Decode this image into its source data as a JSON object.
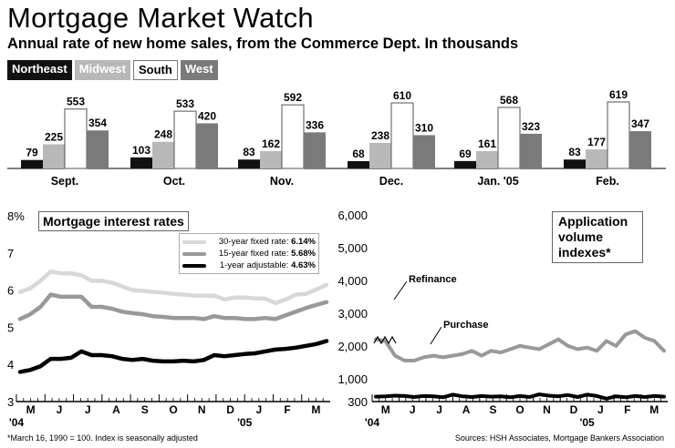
{
  "header": {
    "title": "Mortgage Market Watch",
    "subtitle": "Annual rate of new home sales, from the Commerce Dept. In thousands"
  },
  "colors": {
    "northeast": "#111111",
    "midwest": "#b8b8b8",
    "south": "#ffffff",
    "west": "#7a7a7a"
  },
  "chart_data": [
    {
      "type": "bar",
      "title": "Annual rate of new home sales, from the Commerce Dept. In thousands",
      "categories": [
        "Sept.",
        "Oct.",
        "Nov.",
        "Dec.",
        "Jan. '05",
        "Feb."
      ],
      "series": [
        {
          "name": "Northeast",
          "values": [
            79,
            103,
            83,
            68,
            69,
            83
          ]
        },
        {
          "name": "Midwest",
          "values": [
            225,
            248,
            162,
            238,
            161,
            177
          ]
        },
        {
          "name": "South",
          "values": [
            553,
            533,
            592,
            610,
            568,
            619
          ]
        },
        {
          "name": "West",
          "values": [
            354,
            420,
            336,
            310,
            323,
            347
          ]
        }
      ]
    },
    {
      "type": "line",
      "title": "Mortgage interest rates",
      "ylim": [
        3,
        8
      ],
      "yticks": [
        "3",
        "4",
        "5",
        "6",
        "7",
        "8%"
      ],
      "month_labels": [
        "M",
        "J",
        "J",
        "A",
        "S",
        "O",
        "N",
        "D",
        "J",
        "F",
        "M"
      ],
      "x_year_labels": [
        "'04",
        "'05"
      ],
      "series": [
        {
          "name": "30-year fixed rate:",
          "current": "6.14%",
          "values": [
            5.95,
            6.05,
            6.25,
            6.5,
            6.45,
            6.45,
            6.4,
            6.25,
            6.25,
            6.2,
            6.1,
            6.0,
            5.98,
            5.95,
            5.93,
            5.9,
            5.88,
            5.85,
            5.85,
            5.85,
            5.75,
            5.8,
            5.8,
            5.78,
            5.77,
            5.65,
            5.75,
            5.88,
            5.9,
            6.02,
            6.14
          ]
        },
        {
          "name": "15-year fixed rate:",
          "current": "5.68%",
          "values": [
            5.22,
            5.35,
            5.55,
            5.88,
            5.82,
            5.82,
            5.82,
            5.55,
            5.55,
            5.5,
            5.42,
            5.38,
            5.35,
            5.3,
            5.28,
            5.25,
            5.25,
            5.25,
            5.22,
            5.3,
            5.25,
            5.25,
            5.22,
            5.22,
            5.25,
            5.22,
            5.32,
            5.42,
            5.52,
            5.6,
            5.68
          ]
        },
        {
          "name": "1-year adjustable:",
          "current": "4.63%",
          "values": [
            3.8,
            3.85,
            3.95,
            4.15,
            4.15,
            4.18,
            4.35,
            4.25,
            4.25,
            4.22,
            4.15,
            4.12,
            4.15,
            4.1,
            4.08,
            4.08,
            4.1,
            4.08,
            4.12,
            4.25,
            4.22,
            4.25,
            4.28,
            4.3,
            4.35,
            4.4,
            4.42,
            4.45,
            4.5,
            4.55,
            4.63
          ]
        }
      ]
    },
    {
      "type": "line",
      "title": "Application volume indexes*",
      "ylim": [
        300,
        6000
      ],
      "yticks": [
        "300",
        "1,000",
        "2,000",
        "3,000",
        "4,000",
        "5,000",
        "6,000"
      ],
      "month_labels": [
        "M",
        "J",
        "J",
        "A",
        "S",
        "O",
        "N",
        "D",
        "J",
        "F",
        "M"
      ],
      "x_year_labels": [
        "'04",
        "'05"
      ],
      "series": [
        {
          "name": "Refinance",
          "values": [
            2200,
            2150,
            1700,
            1550,
            1550,
            1650,
            1700,
            1650,
            1700,
            1750,
            1850,
            1700,
            1850,
            1800,
            1900,
            2000,
            1950,
            1900,
            2050,
            2200,
            2000,
            1900,
            1950,
            1850,
            2150,
            2000,
            2350,
            2450,
            2250,
            2150,
            1850
          ]
        },
        {
          "name": "Purchase",
          "values": [
            450,
            460,
            480,
            470,
            440,
            470,
            460,
            430,
            510,
            460,
            440,
            470,
            450,
            460,
            430,
            470,
            440,
            520,
            480,
            460,
            500,
            440,
            510,
            470,
            390,
            460,
            430,
            470,
            440,
            470,
            450
          ]
        }
      ]
    }
  ],
  "rates_panel": {
    "title": "Mortgage interest rates",
    "legend": [
      {
        "label": "30-year fixed rate:",
        "value": "6.14%"
      },
      {
        "label": "15-year fixed rate:",
        "value": "5.68%"
      },
      {
        "label": "1-year adjustable:",
        "value": "4.63%"
      }
    ]
  },
  "app_panel": {
    "title_lines": [
      "Application",
      "volume",
      "indexes*"
    ],
    "refinance_label": "Refinance",
    "purchase_label": "Purchase"
  },
  "footer": {
    "note": "*March 16, 1990 = 100. Index is seasonally adjusted",
    "sources": "Sources: HSH Associates, Mortgage Bankers Association"
  }
}
